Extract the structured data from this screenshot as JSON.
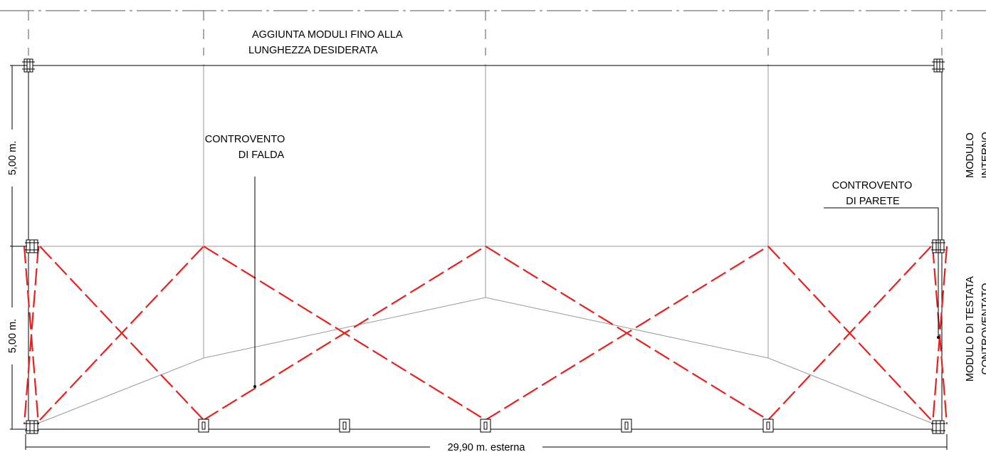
{
  "labels": {
    "top_note_line1": "AGGIUNTA MODULI FINO ALLA",
    "top_note_line2": "LUNGHEZZA DESIDERATA",
    "roof_bracing_line1": "CONTROVENTO",
    "roof_bracing_line2": "DI FALDA",
    "wall_bracing_line1": "CONTROVENTO",
    "wall_bracing_line2": "DI PARETE",
    "dim_upper_module": "5,00 m.",
    "dim_lower_module": "5,00 m.",
    "dim_width": "29,90 m. esterna",
    "module_internal_line1": "MODULO",
    "module_internal_line2": "INTERNO",
    "module_braced_line1": "MODULO DI TESTATA",
    "module_braced_line2": "CONTROVENTATO"
  },
  "colors": {
    "bracing": "#e8201e",
    "structure": "#000000",
    "grid": "#9a9a9a"
  }
}
